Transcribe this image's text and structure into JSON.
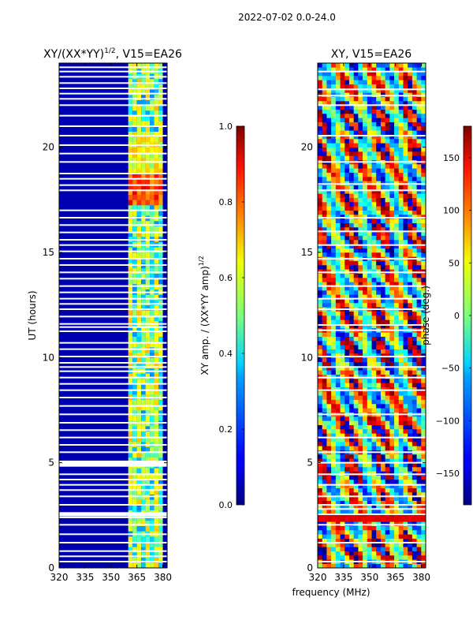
{
  "figure": {
    "suptitle": "2022-07-02 0.0-24.0",
    "xlabel_shared": "frequency (MHz)"
  },
  "chart_data": [
    {
      "type": "heatmap",
      "title": "XY/(XX*YY)",
      "title_exponent": "1/2",
      "title_suffix": ", V15=EA26",
      "xlabel": "",
      "ylabel": "UT (hours)",
      "xlim": [
        320,
        382.5
      ],
      "ylim": [
        0,
        24
      ],
      "xticks": [
        "320",
        "335",
        "350",
        "365",
        "380"
      ],
      "xtick_values": [
        320,
        335,
        350,
        365,
        380
      ],
      "yticks": [
        "0",
        "5",
        "10",
        "15",
        "20"
      ],
      "ytick_values": [
        0,
        5,
        10,
        15,
        20
      ],
      "colorscale": "jet",
      "background_value": 0.05,
      "channel_columns_mhz": [
        [
          360,
          362.5
        ],
        [
          362.5,
          365
        ],
        [
          365,
          367.5
        ],
        [
          367.5,
          370
        ],
        [
          370,
          372.5
        ],
        [
          372.5,
          375
        ],
        [
          375,
          377.5
        ],
        [
          377.5,
          380
        ]
      ],
      "flagged_hours": [
        0.3,
        0.55,
        0.8,
        1.2,
        1.6,
        2.05,
        2.4,
        2.5,
        2.6,
        3.0,
        3.4,
        3.7,
        3.95,
        4.2,
        4.45,
        4.85,
        4.95,
        5.05,
        5.5,
        5.85,
        6.2,
        6.55,
        6.9,
        7.3,
        7.7,
        8.1,
        8.45,
        8.75,
        9.05,
        9.35,
        9.55,
        9.75,
        10.05,
        10.4,
        10.7,
        11.25,
        11.45,
        11.6,
        11.95,
        12.3,
        12.55,
        12.8,
        13.1,
        13.4,
        13.75,
        14.05,
        14.4,
        14.7,
        15.05,
        15.35,
        15.6,
        15.95,
        16.3,
        16.65,
        17.0,
        17.95,
        18.2,
        18.5,
        18.75,
        19.3,
        19.7,
        20.1,
        20.55,
        21.0,
        21.5,
        22.0,
        22.3,
        22.55,
        22.8,
        23.05,
        23.35,
        23.6,
        23.8
      ],
      "bright_event": {
        "hour_range": [
          17.2,
          18.7
        ],
        "peak_value": 0.9
      },
      "colorbar": {
        "label": "XY amp. / (XX*YY amp)",
        "label_exponent": "1/2",
        "range": [
          0.0,
          1.0
        ],
        "ticks": [
          "0.0",
          "0.2",
          "0.4",
          "0.6",
          "0.8",
          "1.0"
        ],
        "tick_values": [
          0.0,
          0.2,
          0.4,
          0.6,
          0.8,
          1.0
        ]
      }
    },
    {
      "type": "heatmap",
      "title": "XY, V15=EA26",
      "xlabel": "frequency (MHz)",
      "ylabel": "",
      "xlim": [
        320,
        382.5
      ],
      "ylim": [
        0,
        24
      ],
      "xticks": [
        "320",
        "335",
        "350",
        "365",
        "380"
      ],
      "xtick_values": [
        320,
        335,
        350,
        365,
        380
      ],
      "yticks": [
        "0",
        "5",
        "10",
        "15",
        "20"
      ],
      "ytick_values": [
        0,
        5,
        10,
        15,
        20
      ],
      "colorscale": "jet",
      "flagged_hours": [
        0.3,
        1.2,
        2.05,
        2.55,
        2.8,
        3.0,
        3.4,
        3.95,
        4.45,
        5.0,
        5.5,
        6.2,
        7.3,
        8.45,
        9.05,
        9.55,
        10.05,
        11.3,
        11.55,
        12.3,
        12.8,
        13.4,
        14.05,
        14.7,
        15.35,
        16.0,
        16.65,
        17.95,
        18.25,
        19.3,
        20.55,
        22.0,
        22.45,
        22.75,
        23.6
      ],
      "phase_band": {
        "hour_range": [
          2.15,
          2.55
        ],
        "value_deg": 150
      },
      "colorbar": {
        "label": "phase (deg.)",
        "range": [
          -180,
          180
        ],
        "ticks": [
          "−150",
          "−100",
          "−50",
          "0",
          "50",
          "100",
          "150"
        ],
        "tick_values": [
          -150,
          -100,
          -50,
          0,
          50,
          100,
          150
        ]
      }
    }
  ]
}
